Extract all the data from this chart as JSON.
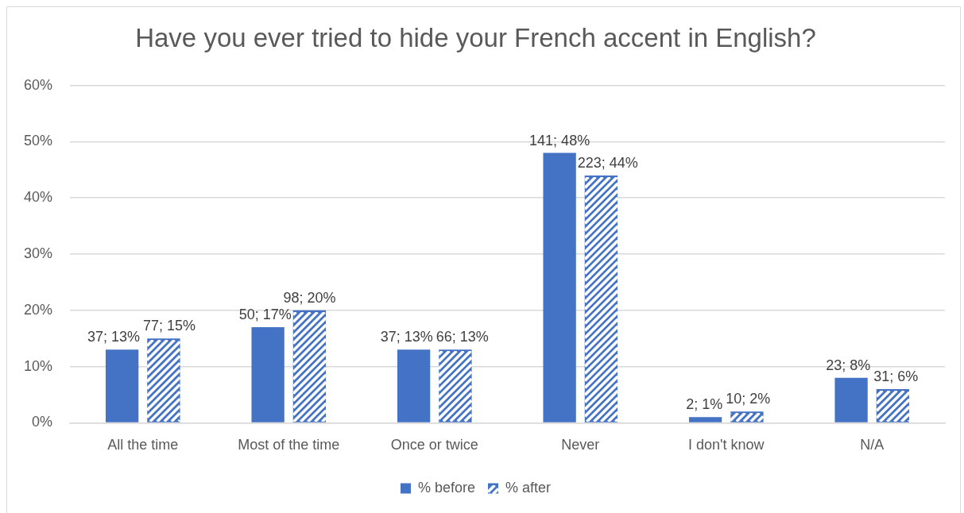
{
  "chart_data": {
    "type": "bar",
    "title": "Have you ever tried to hide your French accent in English?",
    "categories": [
      "All the time",
      "Most of the time",
      "Once or twice",
      "Never",
      "I don't know",
      "N/A"
    ],
    "series": [
      {
        "name": "% before",
        "color": "#4472c4",
        "values": [
          13,
          17,
          13,
          48,
          1,
          8
        ],
        "value_labels": [
          "37; 13%",
          "50; 17%",
          "37; 13%",
          "141; 48%",
          "2; 1%",
          "23; 8%"
        ]
      },
      {
        "name": "% after",
        "color": "#4472c4",
        "values": [
          15,
          20,
          13,
          44,
          2,
          6
        ],
        "value_labels": [
          "77; 15%",
          "98; 20%",
          "66; 13%",
          "223; 44%",
          "10; 2%",
          "31; 6%"
        ]
      }
    ],
    "ylim": [
      0,
      60
    ],
    "yticks": [
      {
        "value": 0,
        "label": "0%"
      },
      {
        "value": 10,
        "label": "10%"
      },
      {
        "value": 20,
        "label": "20%"
      },
      {
        "value": 30,
        "label": "30%"
      },
      {
        "value": 40,
        "label": "40%"
      },
      {
        "value": 50,
        "label": "50%"
      },
      {
        "value": 60,
        "label": "60%"
      }
    ],
    "grid": "y",
    "legend": "bottom"
  }
}
